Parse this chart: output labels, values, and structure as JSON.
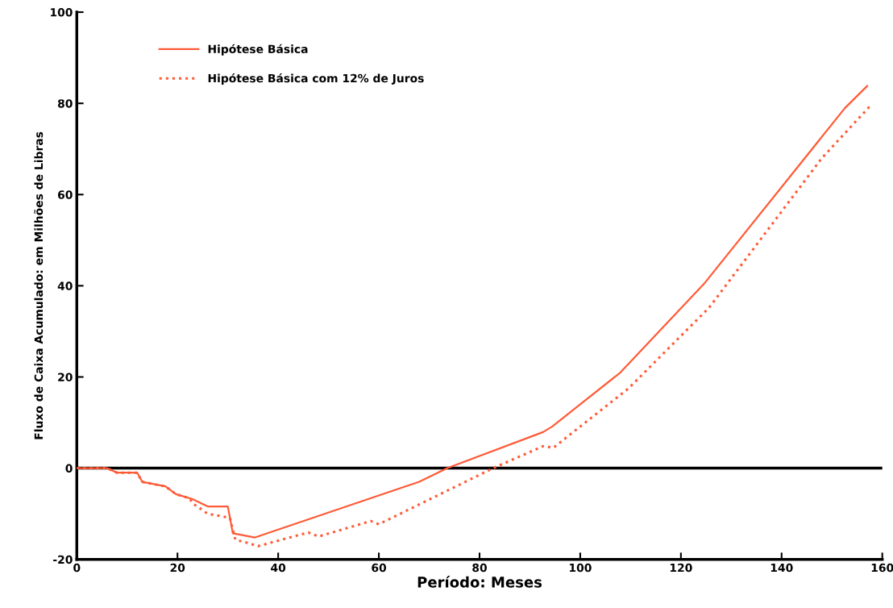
{
  "chart_data": {
    "type": "line",
    "xlabel": "Período: Meses",
    "ylabel": "Fluxo de Caixa Acumulado: em Milhões de Libras",
    "xlim": [
      0,
      160
    ],
    "ylim": [
      -20,
      100
    ],
    "xticks": [
      0,
      20,
      40,
      60,
      80,
      100,
      120,
      140,
      160
    ],
    "yticks": [
      -20,
      0,
      20,
      40,
      60,
      80,
      100
    ],
    "grid": false,
    "legend": "top left",
    "marker": "none",
    "ref_lines": [
      {
        "axis": "y",
        "value": 0,
        "color": "#000000",
        "line_style": "solid"
      }
    ],
    "series": [
      {
        "name": "Hipótese Básica",
        "color": "#ff5a36",
        "line_style": "solid",
        "x": [
          0,
          6,
          8,
          12,
          13,
          17.6,
          19.7,
          23,
          26,
          30,
          31,
          35.4,
          68,
          73.6,
          92.6,
          94.4,
          108,
          124.8,
          152.6,
          157
        ],
        "values": [
          0,
          0,
          -1,
          -1,
          -3,
          -4,
          -5.7,
          -6.8,
          -8.4,
          -8.4,
          -14.3,
          -15.2,
          -3,
          0,
          7.9,
          9.1,
          21,
          40.7,
          79,
          83.8
        ]
      },
      {
        "name": "Hipótese Básica com 12% de Juros",
        "color": "#ff5a36",
        "line_style": "dotted",
        "x": [
          0,
          6,
          8,
          12,
          13,
          17.6,
          19.7,
          22.4,
          23,
          26,
          30.4,
          31.5,
          34,
          36,
          46,
          48,
          58.4,
          60,
          82.7,
          92.6,
          94.7,
          109.6,
          125.6,
          148,
          157.9
        ],
        "values": [
          0,
          0,
          -1,
          -1,
          -3,
          -4,
          -5.7,
          -6.6,
          -7.7,
          -10,
          -10.9,
          -15.7,
          -16.4,
          -17.1,
          -14.1,
          -15,
          -11.6,
          -12.3,
          0,
          4.8,
          4.5,
          17.5,
          35.2,
          68,
          79.8
        ]
      }
    ]
  }
}
